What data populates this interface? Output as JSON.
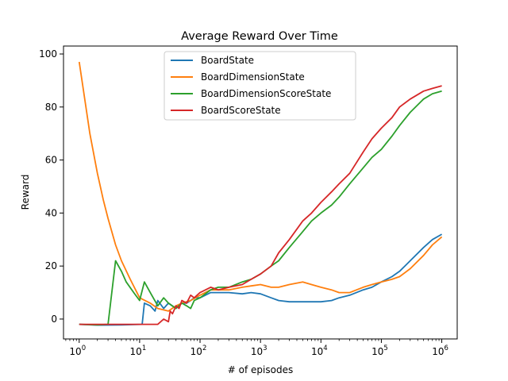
{
  "chart_data": {
    "type": "line",
    "title": "Average Reward Over Time",
    "xlabel": "# of episodes",
    "ylabel": "Reward",
    "x_scale": "log",
    "xlim": [
      0.55,
      1800000
    ],
    "ylim": [
      -7.5,
      103
    ],
    "x_ticks": [
      1,
      10,
      100,
      1000,
      10000,
      100000,
      1000000
    ],
    "x_tick_labels": [
      {
        "base": "10",
        "exp": "0"
      },
      {
        "base": "10",
        "exp": "1"
      },
      {
        "base": "10",
        "exp": "2"
      },
      {
        "base": "10",
        "exp": "3"
      },
      {
        "base": "10",
        "exp": "4"
      },
      {
        "base": "10",
        "exp": "5"
      },
      {
        "base": "10",
        "exp": "6"
      }
    ],
    "y_ticks": [
      0,
      20,
      40,
      60,
      80,
      100
    ],
    "y_tick_labels": [
      "0",
      "20",
      "40",
      "60",
      "80",
      "100"
    ],
    "grid": false,
    "legend_position": "top-center",
    "series": [
      {
        "name": "BoardState",
        "color": "#1f77b4",
        "points": [
          [
            1,
            -2
          ],
          [
            2,
            -2.3
          ],
          [
            5,
            -2.2
          ],
          [
            11,
            -2
          ],
          [
            12,
            6
          ],
          [
            15,
            5
          ],
          [
            18,
            3
          ],
          [
            20,
            7
          ],
          [
            25,
            4
          ],
          [
            30,
            6
          ],
          [
            40,
            4
          ],
          [
            50,
            6
          ],
          [
            60,
            6
          ],
          [
            70,
            7
          ],
          [
            80,
            8
          ],
          [
            100,
            8
          ],
          [
            150,
            10
          ],
          [
            200,
            10
          ],
          [
            300,
            10
          ],
          [
            500,
            9.5
          ],
          [
            700,
            10
          ],
          [
            1000,
            9.5
          ],
          [
            1500,
            8
          ],
          [
            2000,
            7
          ],
          [
            3000,
            6.5
          ],
          [
            5000,
            6.5
          ],
          [
            7000,
            6.5
          ],
          [
            10000,
            6.5
          ],
          [
            15000,
            7
          ],
          [
            20000,
            8
          ],
          [
            30000,
            9
          ],
          [
            50000,
            11
          ],
          [
            70000,
            12
          ],
          [
            100000,
            14
          ],
          [
            150000,
            16
          ],
          [
            200000,
            18
          ],
          [
            300000,
            22
          ],
          [
            500000,
            27
          ],
          [
            700000,
            30
          ],
          [
            1000000,
            32
          ]
        ]
      },
      {
        "name": "BoardDimensionState",
        "color": "#ff7f0e",
        "points": [
          [
            1,
            97
          ],
          [
            1.5,
            70
          ],
          [
            2,
            55
          ],
          [
            2.5,
            45
          ],
          [
            3,
            38
          ],
          [
            4,
            28
          ],
          [
            5,
            22
          ],
          [
            7,
            15
          ],
          [
            10,
            8
          ],
          [
            15,
            6
          ],
          [
            20,
            4
          ],
          [
            30,
            3
          ],
          [
            40,
            5
          ],
          [
            50,
            6
          ],
          [
            70,
            7
          ],
          [
            100,
            9
          ],
          [
            150,
            11
          ],
          [
            200,
            11
          ],
          [
            300,
            11
          ],
          [
            500,
            12
          ],
          [
            700,
            12.5
          ],
          [
            1000,
            13
          ],
          [
            1500,
            12
          ],
          [
            2000,
            12
          ],
          [
            3000,
            13
          ],
          [
            5000,
            14
          ],
          [
            7000,
            13
          ],
          [
            10000,
            12
          ],
          [
            15000,
            11
          ],
          [
            20000,
            10
          ],
          [
            30000,
            10
          ],
          [
            50000,
            12
          ],
          [
            70000,
            13
          ],
          [
            100000,
            14
          ],
          [
            150000,
            15
          ],
          [
            200000,
            16
          ],
          [
            300000,
            19
          ],
          [
            500000,
            24
          ],
          [
            700000,
            28
          ],
          [
            1000000,
            31
          ]
        ]
      },
      {
        "name": "BoardDimensionScoreState",
        "color": "#2ca02c",
        "points": [
          [
            1,
            -2
          ],
          [
            2,
            -2.2
          ],
          [
            3,
            -2
          ],
          [
            4,
            22
          ],
          [
            5,
            18
          ],
          [
            6,
            14
          ],
          [
            8,
            10
          ],
          [
            10,
            7
          ],
          [
            12,
            14
          ],
          [
            15,
            10
          ],
          [
            20,
            5
          ],
          [
            25,
            8
          ],
          [
            30,
            6
          ],
          [
            40,
            4
          ],
          [
            50,
            6
          ],
          [
            60,
            5
          ],
          [
            70,
            4
          ],
          [
            80,
            7
          ],
          [
            100,
            8
          ],
          [
            150,
            11
          ],
          [
            200,
            12
          ],
          [
            300,
            12
          ],
          [
            500,
            14
          ],
          [
            700,
            15
          ],
          [
            1000,
            17
          ],
          [
            1500,
            20
          ],
          [
            2000,
            22
          ],
          [
            3000,
            27
          ],
          [
            5000,
            33
          ],
          [
            7000,
            37
          ],
          [
            10000,
            40
          ],
          [
            15000,
            43
          ],
          [
            20000,
            46
          ],
          [
            30000,
            51
          ],
          [
            50000,
            57
          ],
          [
            70000,
            61
          ],
          [
            100000,
            64
          ],
          [
            150000,
            69
          ],
          [
            200000,
            73
          ],
          [
            300000,
            78
          ],
          [
            500000,
            83
          ],
          [
            700000,
            85
          ],
          [
            1000000,
            86
          ]
        ]
      },
      {
        "name": "BoardScoreState",
        "color": "#d62728",
        "points": [
          [
            1,
            -2
          ],
          [
            5,
            -2
          ],
          [
            10,
            -2
          ],
          [
            20,
            -2
          ],
          [
            25,
            0
          ],
          [
            30,
            -1
          ],
          [
            32,
            3
          ],
          [
            35,
            2
          ],
          [
            40,
            5
          ],
          [
            45,
            4
          ],
          [
            50,
            7
          ],
          [
            60,
            6
          ],
          [
            70,
            9
          ],
          [
            80,
            8
          ],
          [
            100,
            10
          ],
          [
            150,
            12
          ],
          [
            200,
            11
          ],
          [
            300,
            12
          ],
          [
            500,
            13
          ],
          [
            700,
            15
          ],
          [
            1000,
            17
          ],
          [
            1500,
            20
          ],
          [
            2000,
            25
          ],
          [
            3000,
            30
          ],
          [
            5000,
            37
          ],
          [
            7000,
            40
          ],
          [
            10000,
            44
          ],
          [
            15000,
            48
          ],
          [
            20000,
            51
          ],
          [
            30000,
            55
          ],
          [
            50000,
            63
          ],
          [
            70000,
            68
          ],
          [
            100000,
            72
          ],
          [
            150000,
            76
          ],
          [
            200000,
            80
          ],
          [
            300000,
            83
          ],
          [
            500000,
            86
          ],
          [
            700000,
            87
          ],
          [
            1000000,
            88
          ]
        ]
      }
    ]
  }
}
